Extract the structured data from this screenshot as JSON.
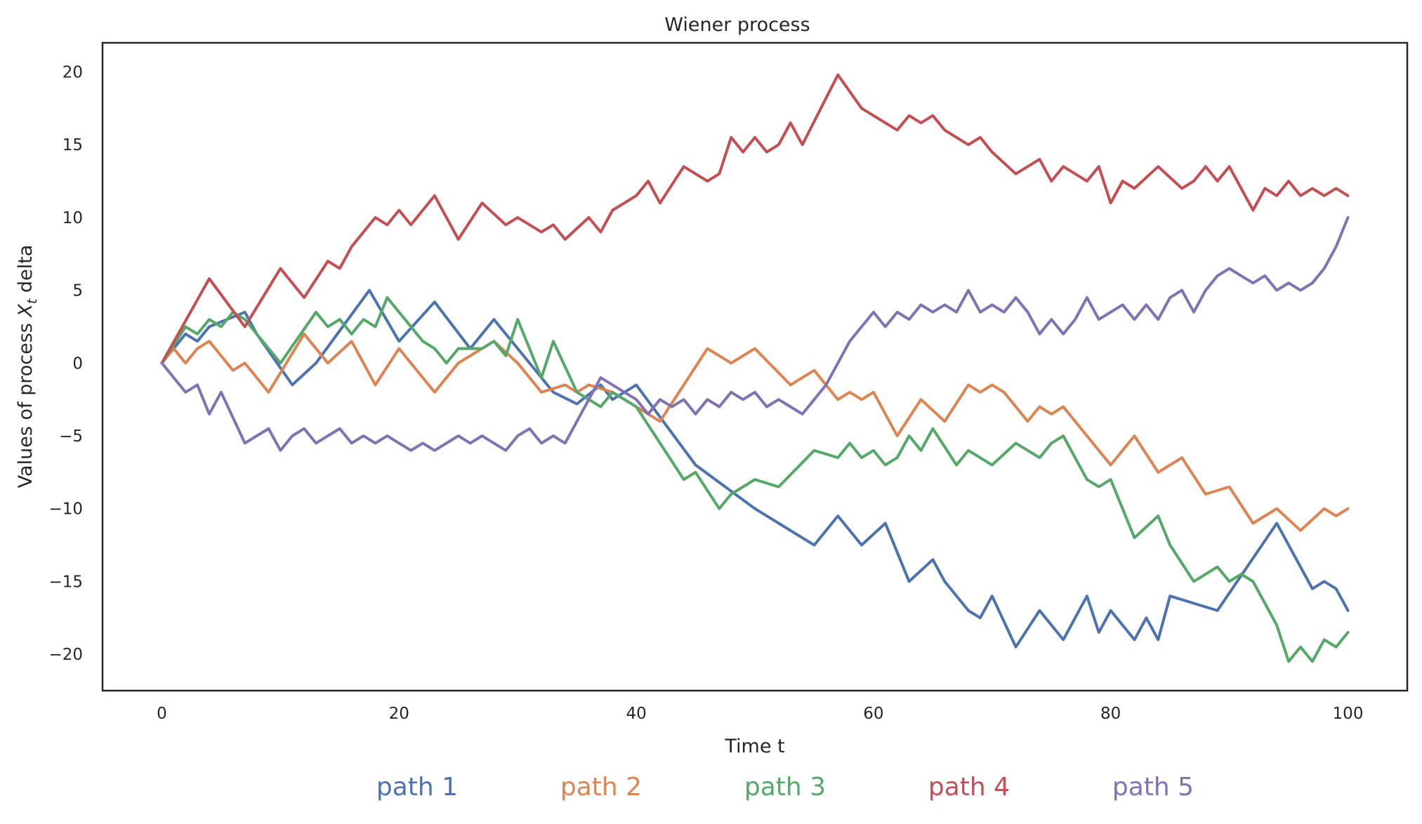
{
  "chart_data": {
    "type": "line",
    "title": "Wiener process",
    "xlabel": "Time t",
    "ylabel": {
      "prefix": "Values of process ",
      "var": "X",
      "sub": "t",
      "suffix": " delta"
    },
    "xlim": [
      -5,
      105
    ],
    "ylim": [
      -22.5,
      22
    ],
    "x_ticks": [
      0,
      20,
      40,
      60,
      80,
      100
    ],
    "y_ticks": [
      -20,
      -15,
      -10,
      -5,
      0,
      5,
      10,
      15,
      20
    ],
    "x_tick_labels": [
      "0",
      "20",
      "40",
      "60",
      "80",
      "100"
    ],
    "y_tick_labels": [
      "−20",
      "−15",
      "−10",
      "−5",
      "0",
      "5",
      "10",
      "15",
      "20"
    ],
    "grid": false,
    "legend_position": "bottom-center",
    "series": [
      {
        "name": "path 1",
        "color": "#4c72b0",
        "x": [
          0,
          2,
          3,
          4,
          7,
          8,
          11,
          13,
          17.5,
          20,
          23,
          26,
          28,
          33,
          35,
          37,
          38,
          40,
          45,
          50,
          51,
          55,
          57,
          59,
          61,
          63,
          65,
          66,
          68,
          69,
          70,
          72,
          74,
          76,
          78,
          79,
          80,
          82,
          83,
          84,
          85,
          89,
          94,
          97,
          98,
          99,
          100
        ],
        "y": [
          0,
          2,
          1.5,
          2.5,
          3.5,
          2,
          -1.5,
          0,
          5,
          1.5,
          4.2,
          1,
          3,
          -2,
          -2.8,
          -1.5,
          -2.5,
          -1.5,
          -7,
          -10,
          -10.5,
          -12.5,
          -10.5,
          -12.5,
          -11,
          -15,
          -13.5,
          -15,
          -17,
          -17.5,
          -16,
          -19.5,
          -17,
          -19,
          -16,
          -18.5,
          -17,
          -19,
          -17.5,
          -19,
          -16,
          -17,
          -11,
          -15.5,
          -15,
          -15.5,
          -17
        ]
      },
      {
        "name": "path 2",
        "color": "#dd8452",
        "x": [
          0,
          1,
          2,
          3,
          4,
          6,
          7,
          8,
          9,
          12,
          14,
          16,
          17,
          18,
          20,
          23,
          25,
          28,
          30,
          32,
          34,
          35,
          36,
          38,
          42,
          46,
          48,
          50,
          53,
          55,
          57,
          58,
          59,
          60,
          62,
          64,
          66,
          68,
          69,
          70,
          71,
          72,
          73,
          74,
          75,
          76,
          78,
          80,
          82,
          84,
          85,
          86,
          88,
          90,
          92,
          94,
          96,
          98,
          99,
          100
        ],
        "y": [
          0,
          1,
          0,
          1,
          1.5,
          -0.5,
          0,
          -1,
          -2,
          2,
          0,
          1.5,
          0,
          -1.5,
          1,
          -2,
          0,
          1.5,
          0,
          -2,
          -1.5,
          -2,
          -1.5,
          -2,
          -4,
          1,
          0,
          1,
          -1.5,
          -0.5,
          -2.5,
          -2,
          -2.5,
          -2,
          -5,
          -2.5,
          -4,
          -1.5,
          -2,
          -1.5,
          -2,
          -3,
          -4,
          -3,
          -3.5,
          -3,
          -5,
          -7,
          -5,
          -7.5,
          -7,
          -6.5,
          -9,
          -8.5,
          -11,
          -10,
          -11.5,
          -10,
          -10.5,
          -10
        ]
      },
      {
        "name": "path 3",
        "color": "#55a868",
        "x": [
          0,
          2,
          3,
          4,
          5,
          6,
          7,
          10,
          13,
          14,
          15,
          16,
          17,
          18,
          19,
          22,
          23,
          24,
          25,
          27,
          28,
          29,
          30,
          32,
          33,
          35,
          37,
          38,
          40,
          44,
          45,
          47,
          48,
          50,
          52,
          55,
          57,
          58,
          59,
          60,
          61,
          62,
          63,
          64,
          65,
          67,
          68,
          70,
          72,
          74,
          75,
          76,
          78,
          79,
          80,
          82,
          84,
          85,
          87,
          89,
          90,
          91,
          92,
          94,
          95,
          96,
          97,
          98,
          99,
          100
        ],
        "y": [
          0,
          2.5,
          2,
          3,
          2.5,
          3.5,
          3,
          0,
          3.5,
          2.5,
          3,
          2,
          3,
          2.5,
          4.5,
          1.5,
          1,
          0,
          1,
          1,
          1.5,
          0.5,
          3,
          -1,
          1.5,
          -2,
          -3,
          -2,
          -3,
          -8,
          -7.5,
          -10,
          -9,
          -8,
          -8.5,
          -6,
          -6.5,
          -5.5,
          -6.5,
          -6,
          -7,
          -6.5,
          -5,
          -6,
          -4.5,
          -7,
          -6,
          -7,
          -5.5,
          -6.5,
          -5.5,
          -5,
          -8,
          -8.5,
          -8,
          -12,
          -10.5,
          -12.5,
          -15,
          -14,
          -15,
          -14.5,
          -15,
          -18,
          -20.5,
          -19.5,
          -20.5,
          -19,
          -19.5,
          -18.5
        ]
      },
      {
        "name": "path 4",
        "color": "#c44e52",
        "x": [
          0,
          4,
          7,
          10,
          12,
          14,
          15,
          16,
          17,
          18,
          19,
          20,
          21,
          23,
          25,
          27,
          29,
          30,
          32,
          33,
          34,
          36,
          37,
          38,
          40,
          41,
          42,
          44,
          46,
          47,
          48,
          49,
          50,
          51,
          52,
          53,
          54,
          57,
          59,
          61,
          62,
          63,
          64,
          65,
          66,
          68,
          69,
          70,
          72,
          74,
          75,
          76,
          78,
          79,
          80,
          81,
          82,
          84,
          86,
          87,
          88,
          89,
          90,
          92,
          93,
          94,
          95,
          96,
          97,
          98,
          99,
          100
        ],
        "y": [
          0,
          5.8,
          2.5,
          6.5,
          4.5,
          7,
          6.5,
          8,
          9,
          10,
          9.5,
          10.5,
          9.5,
          11.5,
          8.5,
          11,
          9.5,
          10,
          9,
          9.5,
          8.5,
          10,
          9,
          10.5,
          11.5,
          12.5,
          11,
          13.5,
          12.5,
          13,
          15.5,
          14.5,
          15.5,
          14.5,
          15,
          16.5,
          15,
          19.8,
          17.5,
          16.5,
          16,
          17,
          16.5,
          17,
          16,
          15,
          15.5,
          14.5,
          13,
          14,
          12.5,
          13.5,
          12.5,
          13.5,
          11,
          12.5,
          12,
          13.5,
          12,
          12.5,
          13.5,
          12.5,
          13.5,
          10.5,
          12,
          11.5,
          12.5,
          11.5,
          12,
          11.5,
          12,
          11.5
        ]
      },
      {
        "name": "path 5",
        "color": "#8172b3",
        "x": [
          0,
          2,
          3,
          4,
          5,
          7,
          8,
          9,
          10,
          11,
          12,
          13,
          14,
          15,
          16,
          17,
          18,
          19,
          20,
          21,
          22,
          23,
          24,
          25,
          26,
          27,
          28,
          29,
          30,
          31,
          32,
          33,
          34,
          35,
          36,
          37,
          38,
          40,
          41,
          42,
          43,
          44,
          45,
          46,
          47,
          48,
          49,
          50,
          51,
          52,
          53,
          54,
          55,
          56,
          57,
          58,
          59,
          60,
          61,
          62,
          63,
          64,
          65,
          66,
          67,
          68,
          69,
          70,
          71,
          72,
          73,
          74,
          75,
          76,
          77,
          78,
          79,
          80,
          81,
          82,
          83,
          84,
          85,
          86,
          87,
          88,
          89,
          90,
          91,
          92,
          93,
          94,
          95,
          96,
          97,
          98,
          99,
          100
        ],
        "y": [
          0,
          -2,
          -1.5,
          -3.5,
          -2,
          -5.5,
          -5,
          -4.5,
          -6,
          -5,
          -4.5,
          -5.5,
          -5,
          -4.5,
          -5.5,
          -5,
          -5.5,
          -5,
          -5.5,
          -6,
          -5.5,
          -6,
          -5.5,
          -5,
          -5.5,
          -5,
          -5.5,
          -6,
          -5,
          -4.5,
          -5.5,
          -5,
          -5.5,
          -4,
          -2.5,
          -1,
          -1.5,
          -2.5,
          -3.5,
          -2.5,
          -3,
          -2.5,
          -3.5,
          -2.5,
          -3,
          -2,
          -2.5,
          -2,
          -3,
          -2.5,
          -3,
          -3.5,
          -2.5,
          -1.5,
          0,
          1.5,
          2.5,
          3.5,
          2.5,
          3.5,
          3,
          4,
          3.5,
          4,
          3.5,
          5,
          3.5,
          4,
          3.5,
          4.5,
          3.5,
          2,
          3,
          2,
          3,
          4.5,
          3,
          3.5,
          4,
          3,
          4,
          3,
          4.5,
          5,
          3.5,
          5,
          6,
          6.5,
          6,
          5.5,
          6,
          5,
          5.5,
          5,
          5.5,
          6.5,
          8,
          10
        ]
      }
    ]
  }
}
